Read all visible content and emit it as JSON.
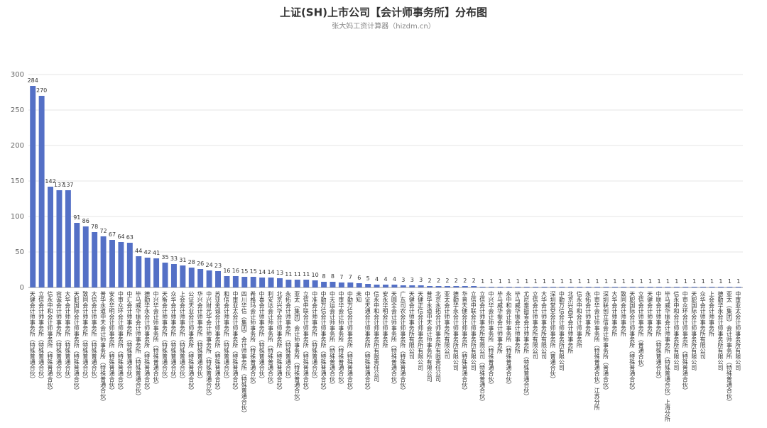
{
  "chart_data": {
    "type": "bar",
    "title": "上证(SH)上市公司【会计师事务所】分布图",
    "subtitle": "张大妈工资计算器（hizdm.cn）",
    "color": "#5470c6",
    "grid": true,
    "ylim": [
      0,
      300
    ],
    "yticks": [
      0,
      50,
      100,
      150,
      200,
      250,
      300
    ],
    "categories": [
      "天健会计师事务所（特殊普通合伙）",
      "立信会计师事务所（特殊普通合伙）",
      "信永中和会计师事务所（特殊普通合伙）",
      "容诚会计师事务所（特殊普通合伙）",
      "大华会计师事务所（特殊普通合伙）",
      "天职国际会计师事务所（特殊普通合伙）",
      "致同会计师事务所（特殊普通合伙）",
      "大信会计师事务所（特殊普通合伙）",
      "普华永道中天会计师事务所（特殊普通合伙）",
      "安永华明会计师事务所（特殊普通合伙）",
      "中审众环会计师事务所（特殊普通合伙）",
      "中汇会计师事务所（特殊普通合伙）",
      "毕马威华振会计师事务所（特殊普通合伙）",
      "德勤华永会计师事务所（特殊普通合伙）",
      "中兴华会计师事务所（特殊普通合伙）",
      "天衡会计师事务所（特殊普通合伙）",
      "众华会计师事务所（特殊普通合伙）",
      "上会会计师事务所（特殊普通合伙）",
      "公证天业会计师事务所（特殊普通合伙）",
      "华兴会计师事务所（特殊普通合伙）",
      "中兴财光华会计师事务所（特殊普通合伙）",
      "苏亚金诚会计师事务所（特殊普通合伙）",
      "和信会计师事务所（特殊普通合伙）",
      "中审亚太会计师事务所（特殊普通合伙）",
      "四川华信（集团）会计师事务所（特殊普通合伙）",
      "希格玛会计师事务所（特殊普通合伙）",
      "中喜会计师事务所（特殊普通合伙）",
      "利安达会计师事务所（特殊普通合伙）",
      "北京兴华会计师事务所（特殊普通合伙）",
      "永拓会计师事务所（特殊普通合伙）",
      "亚太（集团）会计师事务所（特殊普通合伙）",
      "立信中联会计师事务所（特殊普通合伙）",
      "中准会计师事务所（特殊普通合伙）",
      "中勤万信会计师事务所（特殊普通合伙）",
      "中天运会计师事务所（特殊普通合伙）",
      "中审华会计师事务所（特殊普通合伙）",
      "中勤万信会计师事务所（特殊普通合伙）",
      "未知",
      "中证天通会计师事务所（特殊普通合伙）",
      "信永中和会计师事务所有限责任公司",
      "安永华明会计师事务所",
      "天圆全会计师事务所（特殊普通合伙）",
      "广东司农会计师事务所（特殊普通合伙）",
      "天健会计师事务所有限公司",
      "天健正信会计师事务所有限公司",
      "普华永道中天会计师事务所有限公司",
      "北京永拓会计师事务所有限责任公司",
      "亚太会计师事务所有限公司",
      "德勤华永会计师事务所有限公司",
      "华普天健会计师事务所（特殊普通合伙）",
      "立信中联会计师事务所有限公司",
      "立信会计师事务所有限公司（特殊普通合伙）",
      "中兴华会计师事务所（特殊普通合伙）",
      "毕马威华振会计师事务所",
      "永中和会计师事务所（特殊普通合伙）",
      "毕马威华振会计师事务所",
      "尤尼泰振青会计师事务所（特殊普通合伙）",
      "立信会计师事务所有限公司",
      "大华会计师事务所有限公司",
      "深圳堂堂会计师事务所（普通合伙）",
      "中勤万信会计师事务所有限公司",
      "北京兴昌华会计师事务所",
      "信永中和会计师事务所",
      "永拓会计师事务所",
      "中审华会计师事务所（特殊普通合伙）江苏分所",
      "深圳联创立信会计师事务所（普通合伙）",
      "大华会计师事务所",
      "致同会计师事务所",
      "天职国际会计师事务所（特殊普通合伙）",
      "立信会计师事务所（普通合伙）",
      "天健会计师事务所",
      "中联会计师事务所（特殊普通合伙）",
      "毕马威华振会计师事务所（特殊普通合伙）上海分所",
      "信永中和会计师事务所有限公司",
      "中审众环会计师事务所（特殊普通合伙）",
      "天职国际会计师事务所有限公司",
      "众华会计师事务所有限公司",
      "上会会计师事务所",
      "德勤华永会计师事务所有限公司",
      "亚太（集团）会计师事务所（特殊普通合伙）",
      "中审亚太会计师事务所有限公司"
    ],
    "values": [
      284,
      270,
      142,
      137,
      137,
      91,
      86,
      78,
      72,
      67,
      64,
      63,
      44,
      42,
      41,
      35,
      33,
      31,
      28,
      26,
      24,
      23,
      16,
      16,
      15,
      15,
      14,
      14,
      13,
      11,
      11,
      11,
      10,
      8,
      8,
      7,
      7,
      6,
      5,
      4,
      4,
      4,
      3,
      3,
      3,
      2,
      2,
      2,
      2,
      2,
      2,
      1,
      1,
      1,
      1,
      1,
      1,
      1,
      1,
      1,
      1,
      1,
      1,
      1,
      1,
      1,
      1,
      1,
      1,
      1,
      1,
      1,
      1,
      1,
      1,
      1,
      1,
      1,
      1,
      1,
      1
    ]
  }
}
